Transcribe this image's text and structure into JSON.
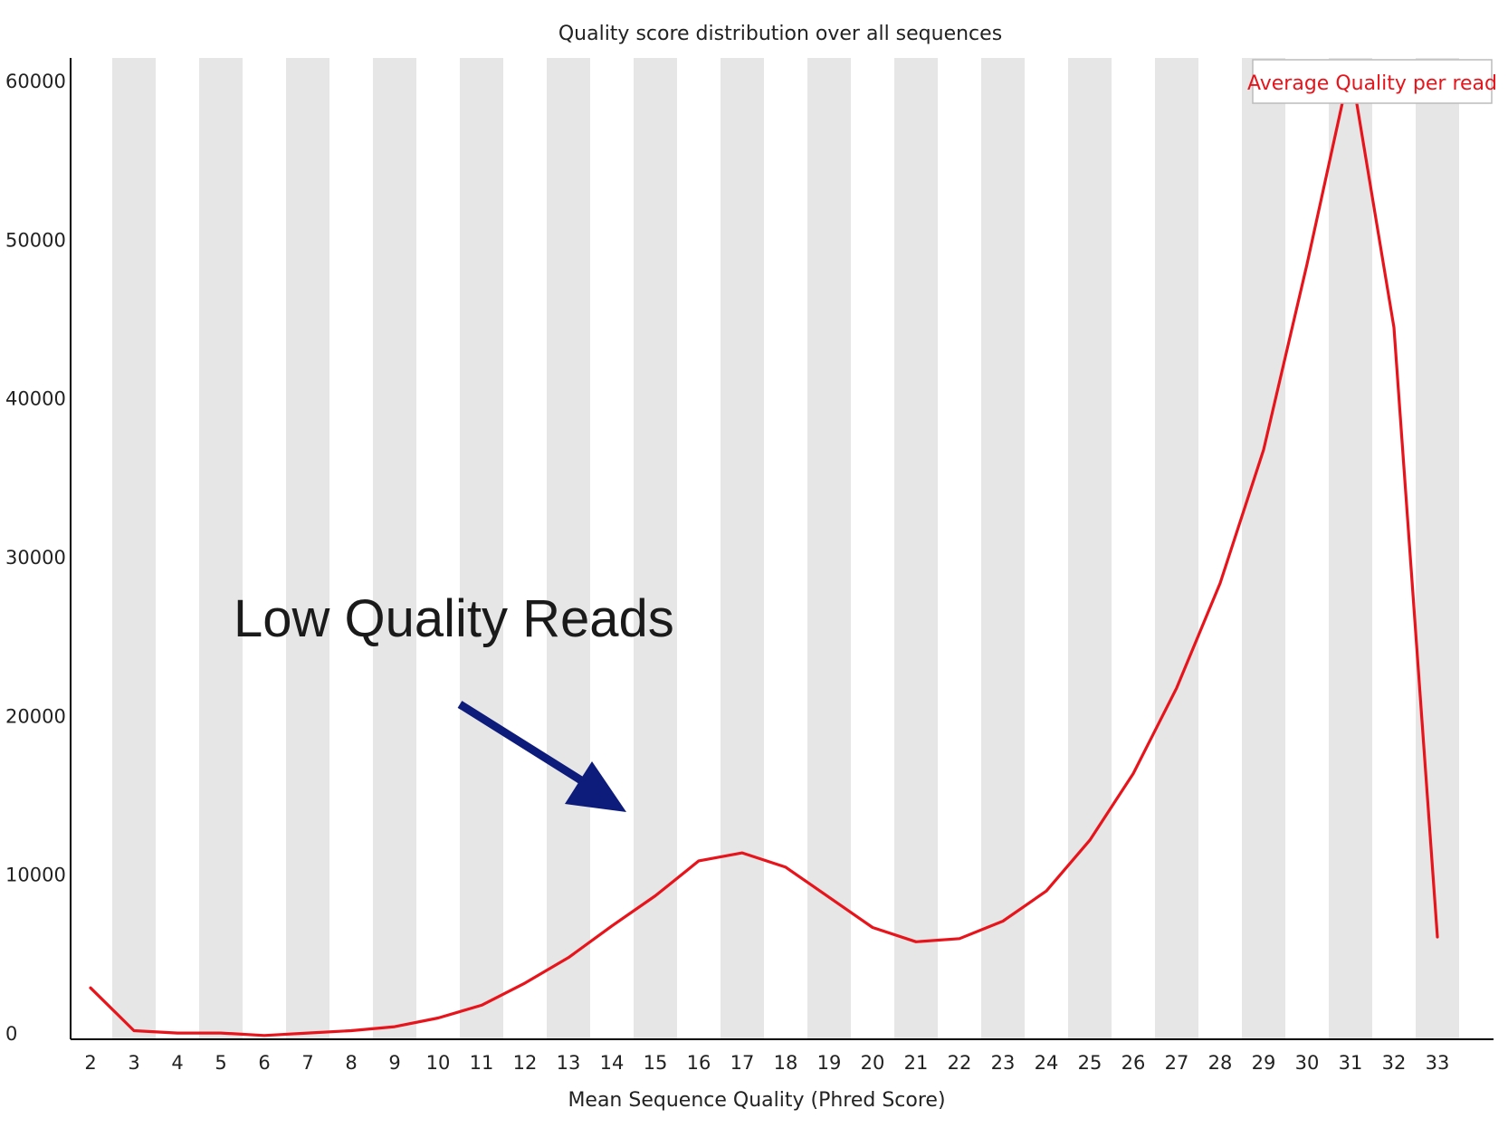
{
  "chart_data": {
    "type": "line",
    "title": "Quality score distribution over all sequences",
    "xlabel": "Mean Sequence Quality (Phred Score)",
    "ylabel": "",
    "x": [
      2,
      3,
      4,
      5,
      6,
      7,
      8,
      9,
      10,
      11,
      12,
      13,
      14,
      15,
      16,
      17,
      18,
      19,
      20,
      21,
      22,
      23,
      24,
      25,
      26,
      27,
      28,
      29,
      30,
      31,
      32,
      33
    ],
    "x_tick_labels": [
      "2",
      "3",
      "4",
      "5",
      "6",
      "7",
      "8",
      "9",
      "10",
      "11",
      "12",
      "13",
      "14",
      "15",
      "16",
      "17",
      "18",
      "19",
      "20",
      "21",
      "22",
      "23",
      "24",
      "25",
      "26",
      "27",
      "28",
      "29",
      "30",
      "31",
      "32",
      "33"
    ],
    "series": [
      {
        "name": "Average Quality per read",
        "color": "#e8141b",
        "values": [
          2900,
          200,
          50,
          50,
          -100,
          50,
          200,
          450,
          1000,
          1800,
          3200,
          4800,
          6800,
          8700,
          10900,
          11400,
          10500,
          8600,
          6700,
          5800,
          6000,
          7100,
          9000,
          12200,
          16400,
          21800,
          28400,
          36800,
          48500,
          61000,
          44500,
          6100
        ]
      }
    ],
    "ylim": [
      0,
      60000
    ],
    "y_ticks": [
      0,
      10000,
      20000,
      30000,
      40000,
      50000,
      60000
    ],
    "y_tick_labels": [
      "0",
      "10000",
      "20000",
      "30000",
      "40000",
      "50000",
      "60000"
    ],
    "grid": "alternating vertical bands",
    "band_color": "#e6e6e6",
    "legend_position": "top-right",
    "annotation": {
      "text": "Low Quality Reads",
      "arrow_color": "#0d1b7a",
      "points_to_x": 15
    }
  }
}
